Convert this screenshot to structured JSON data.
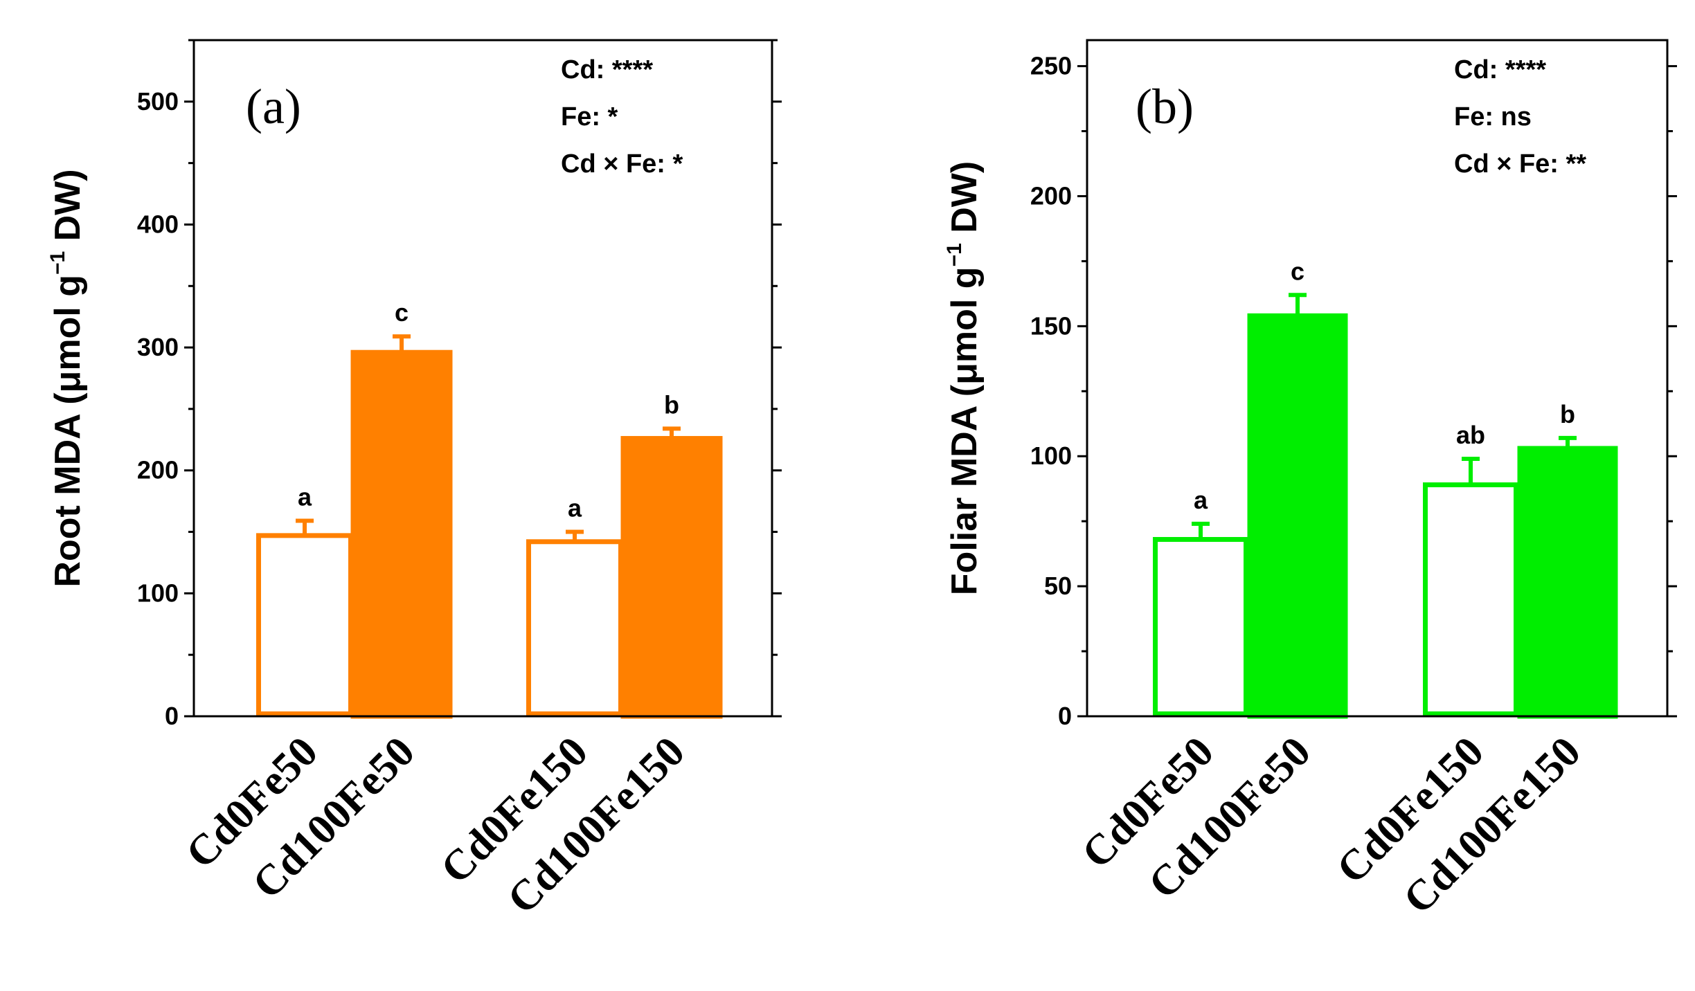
{
  "chart_data": [
    {
      "type": "bar",
      "panel_label": "(a)",
      "ylabel": "Root MDA (μmol g",
      "ylabel_superscript": "−1",
      "ylabel_end": " DW)",
      "ylim": [
        0,
        550
      ],
      "yticks": [
        0,
        100,
        200,
        300,
        400,
        500
      ],
      "color": "#FF8000",
      "categories": [
        "Cd0Fe50",
        "Cd100Fe50",
        "Cd0Fe150",
        "Cd100Fe150"
      ],
      "values": [
        147,
        296,
        142,
        226
      ],
      "errors": [
        12,
        13,
        8,
        8
      ],
      "filled": [
        false,
        true,
        false,
        true
      ],
      "letters": [
        "a",
        "c",
        "a",
        "b"
      ],
      "stats": [
        "Cd: ****",
        "Fe: *",
        "Cd × Fe: *"
      ]
    },
    {
      "type": "bar",
      "panel_label": "(b)",
      "ylabel": "Foliar MDA (μmol g",
      "ylabel_superscript": "−1",
      "ylabel_end": " DW)",
      "ylim": [
        0,
        260
      ],
      "yticks": [
        0,
        50,
        100,
        150,
        200,
        250
      ],
      "color": "#00EE00",
      "categories": [
        "Cd0Fe50",
        "Cd100Fe50",
        "Cd0Fe150",
        "Cd100Fe150"
      ],
      "values": [
        68,
        154,
        89,
        103
      ],
      "errors": [
        6,
        8,
        10,
        4
      ],
      "filled": [
        false,
        true,
        false,
        true
      ],
      "letters": [
        "a",
        "c",
        "ab",
        "b"
      ],
      "stats": [
        "Cd: ****",
        "Fe: ns",
        "Cd × Fe: **"
      ]
    }
  ]
}
